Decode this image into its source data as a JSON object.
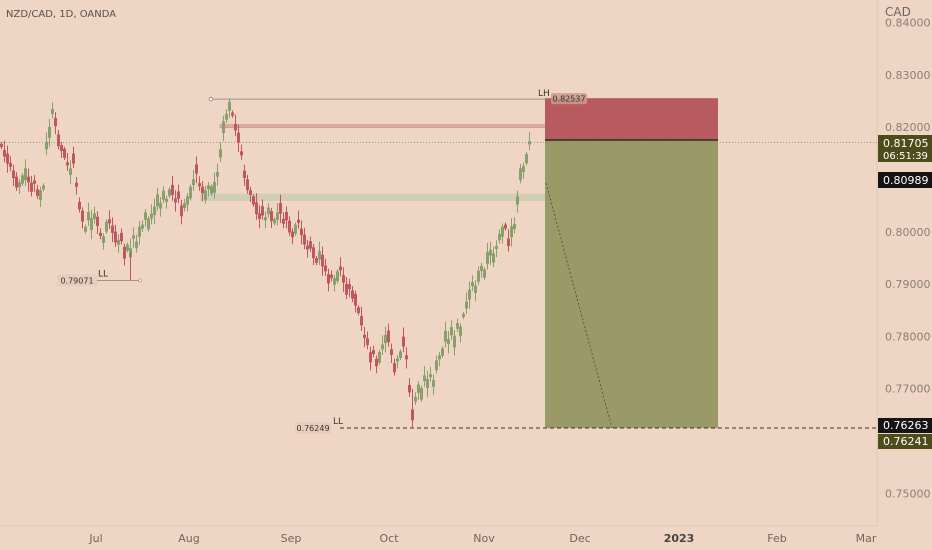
{
  "header": {
    "symbol": "NZD/CAD, 1D, OANDA",
    "currency": "CAD"
  },
  "chart_data": {
    "type": "candlestick",
    "price_axis": {
      "ticks": [
        "0.75000",
        "0.76000",
        "0.77000",
        "0.78000",
        "0.79000",
        "0.80000",
        "0.81000",
        "0.82000",
        "0.83000",
        "0.84000"
      ],
      "range": [
        0.7455,
        0.8445
      ]
    },
    "date_axis": {
      "labels": [
        "Jul",
        "Aug",
        "Sep",
        "Oct",
        "Nov",
        "Dec",
        "2023",
        "Feb",
        "Mar"
      ]
    },
    "current_price": {
      "value": "0.81705",
      "countdown": "06:51:39",
      "color": "#4d4d1c"
    },
    "price_badges": [
      {
        "label": "0.80989",
        "price": 0.80989,
        "color": "#141414"
      },
      {
        "label": "0.76263",
        "price": 0.76263,
        "color": "#141414"
      },
      {
        "label": "0.76241",
        "price": 0.76241,
        "color": "#4d4d1c"
      }
    ],
    "annotations": [
      {
        "text": "LH",
        "value": "0.82537",
        "price": 0.82537
      },
      {
        "text": "LL",
        "value": "0.79071",
        "price": 0.79071
      },
      {
        "text": "LL",
        "value": "0.76249",
        "price": 0.76249
      }
    ],
    "position": {
      "type": "short",
      "stop": 0.82555,
      "entry": 0.81755,
      "target": 0.76249,
      "stop_color": "#b75b5e",
      "target_color": "#9a9a68"
    },
    "zones": [
      {
        "from": 0.8059,
        "to": 0.8073
      },
      {
        "from": 0.8199,
        "to": 0.8205
      }
    ],
    "colors": {
      "up": "#87a06c",
      "down": "#c0575e",
      "background": "#efd5c3"
    }
  }
}
